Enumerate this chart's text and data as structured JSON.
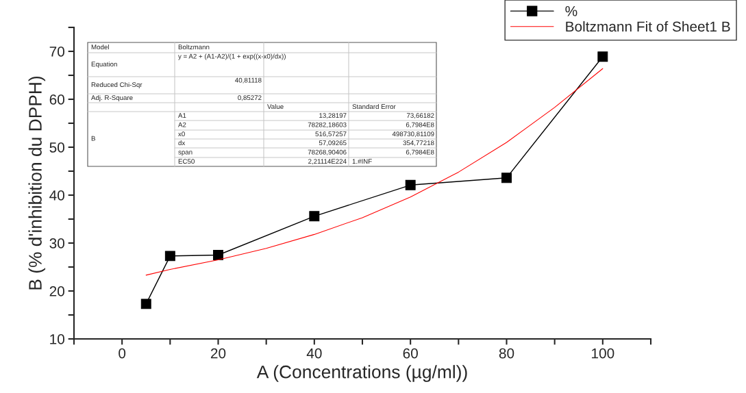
{
  "chart_data": {
    "type": "line",
    "xlabel": "A (Concentrations (µg/ml))",
    "ylabel": "B (% d'inhibition du DPPH)",
    "series": [
      {
        "name": "%",
        "color": "#000000",
        "marker": "square",
        "line_style": "solid",
        "x": [
          5,
          10,
          20,
          40,
          60,
          80,
          100
        ],
        "values": [
          17.3,
          27.3,
          27.5,
          35.6,
          42.1,
          43.6,
          68.9
        ]
      },
      {
        "name": "Boltzmann Fit of Sheet1 B",
        "color": "#ff0000",
        "marker": "none",
        "line_style": "solid",
        "x": [
          5,
          10,
          20,
          30,
          40,
          50,
          60,
          70,
          80,
          90,
          100
        ],
        "values": [
          23.3,
          24.5,
          26.5,
          28.9,
          31.8,
          35.3,
          39.6,
          44.8,
          51.0,
          58.3,
          66.4
        ]
      }
    ],
    "xlim": [
      -10,
      110
    ],
    "xticks": [
      {
        "value": -10,
        "label": null
      },
      0,
      {
        "value": 10,
        "label": null
      },
      20,
      {
        "value": 30,
        "label": null
      },
      40,
      {
        "value": 50,
        "label": null
      },
      60,
      {
        "value": 70,
        "label": null
      },
      80,
      {
        "value": 90,
        "label": null
      },
      100,
      {
        "value": 110,
        "label": null
      }
    ],
    "ylim": [
      10,
      75
    ],
    "yticks": [
      10,
      {
        "value": 15,
        "label": null
      },
      20,
      {
        "value": 25,
        "label": null
      },
      30,
      {
        "value": 35,
        "label": null
      },
      40,
      {
        "value": 45,
        "label": null
      },
      50,
      {
        "value": 55,
        "label": null
      },
      60,
      {
        "value": 65,
        "label": null
      },
      70,
      {
        "value": 75,
        "label": null
      }
    ],
    "grid": false,
    "legend": "top right",
    "annotations": [
      "Model",
      "Boltzmann",
      "Equation",
      "y = A2 + (A1-A2)/(1 + exp((x-x0)/dx))",
      "Reduced Chi-Sqr",
      "40,81118",
      "Adj. R-Square",
      "0,85272",
      "Value",
      "Standard Error",
      "B",
      "A1",
      "13,28197",
      "73,66182",
      "A2",
      "78282,18603",
      "6,7984E8",
      "x0",
      "516,57257",
      "498730,81109",
      "dx",
      "57,09265",
      "354,77218",
      "span",
      "78268,90406",
      "6,7984E8",
      "EC50",
      "2,21114E224",
      "1.#INF"
    ]
  }
}
